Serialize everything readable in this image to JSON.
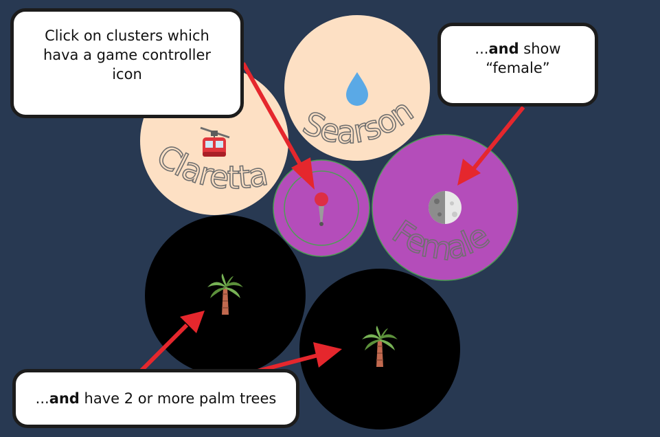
{
  "colors": {
    "background": "#283952",
    "peach": "#fde0c4",
    "purple": "#b44dba",
    "black": "#000000",
    "arrow": "#e5272d"
  },
  "clusters": [
    {
      "id": "claretta",
      "fill": "peach",
      "label": "Claretta",
      "icon": "aerial-tramway-icon"
    },
    {
      "id": "searson",
      "fill": "peach",
      "label": "Searson",
      "icon": "droplet-icon"
    },
    {
      "id": "pin",
      "fill": "purple",
      "label": "",
      "icon": "round-pushpin-icon"
    },
    {
      "id": "female",
      "fill": "purple",
      "label": "Female",
      "icon": "last-quarter-moon-icon"
    },
    {
      "id": "palm-left",
      "fill": "black",
      "label": "",
      "icon": "palm-tree-icon"
    },
    {
      "id": "palm-right",
      "fill": "black",
      "label": "",
      "icon": "palm-tree-icon"
    }
  ],
  "callouts": {
    "controller": {
      "text": "Click on clusters which hava a game controller icon"
    },
    "female": {
      "prefix": "...",
      "bold": "and",
      "rest": " show",
      "line2": "“female”"
    },
    "palm": {
      "prefix": "...",
      "bold": "and",
      "rest": " have 2 or more palm trees"
    }
  }
}
